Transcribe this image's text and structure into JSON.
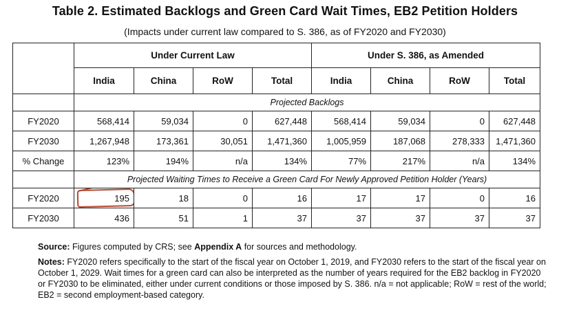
{
  "title": "Table 2. Estimated Backlogs and Green Card Wait Times, EB2 Petition Holders",
  "subtitle": "(Impacts under current law compared to S. 386, as of FY2020 and FY2030)",
  "groups": {
    "current": "Under Current Law",
    "amended": "Under S. 386, as Amended"
  },
  "columns": [
    "India",
    "China",
    "RoW",
    "Total",
    "India",
    "China",
    "RoW",
    "Total"
  ],
  "sections": {
    "backlogs": "Projected Backlogs",
    "wait": "Projected Waiting Times to Receive a Green Card For Newly Approved Petition Holder (Years)"
  },
  "backlog_rows": [
    {
      "label": "FY2020",
      "values": [
        "568,414",
        "59,034",
        "0",
        "627,448",
        "568,414",
        "59,034",
        "0",
        "627,448"
      ]
    },
    {
      "label": "FY2030",
      "values": [
        "1,267,948",
        "173,361",
        "30,051",
        "1,471,360",
        "1,005,959",
        "187,068",
        "278,333",
        "1,471,360"
      ]
    },
    {
      "label": "% Change",
      "values": [
        "123%",
        "194%",
        "n/a",
        "134%",
        "77%",
        "217%",
        "n/a",
        "134%"
      ]
    }
  ],
  "wait_rows": [
    {
      "label": "FY2020",
      "values": [
        "195",
        "18",
        "0",
        "16",
        "17",
        "17",
        "0",
        "16"
      ]
    },
    {
      "label": "FY2030",
      "values": [
        "436",
        "51",
        "1",
        "37",
        "37",
        "37",
        "37",
        "37"
      ]
    }
  ],
  "source": {
    "label": "Source:",
    "text_a": "Figures computed by CRS; see",
    "appendix": "Appendix A",
    "text_b": "for sources and methodology."
  },
  "notes": {
    "label": "Notes:",
    "text": "FY2020 refers specifically to the start of the fiscal year on October 1, 2019, and FY2030 refers to the start of the fiscal year on October 1, 2029. Wait times for a green card can also be interpreted as the number of years required for the EB2 backlog in FY2020 or FY2030 to be eliminated, either under current conditions or those imposed by S. 386. n/a = not applicable; RoW = rest of the world; EB2 = second employment-based category."
  },
  "annotation": {
    "color": "#b5472f",
    "marks": "hand-drawn circle around India FY2020 wait time"
  }
}
